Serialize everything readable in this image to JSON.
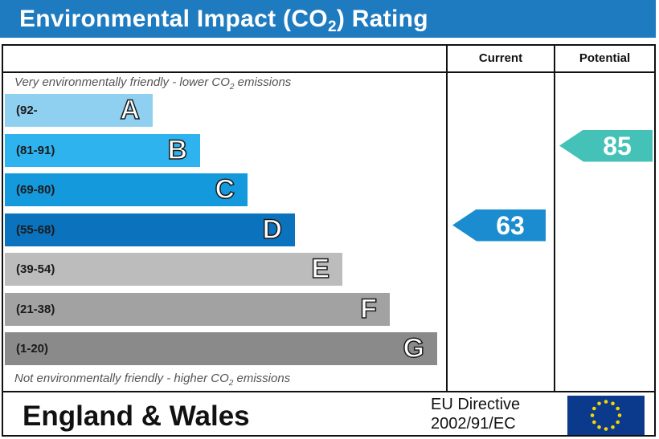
{
  "title": {
    "main": "Environmental Impact (CO",
    "sub": "2",
    "tail": ") Rating"
  },
  "columns": {
    "current": "Current",
    "potential": "Potential"
  },
  "notes": {
    "top": {
      "pre": "Very environmentally friendly - lower CO",
      "sub": "2",
      "post": " emissions"
    },
    "bottom": {
      "pre": "Not environmentally friendly - higher CO",
      "sub": "2",
      "post": " emissions"
    }
  },
  "chart_data": {
    "type": "bar",
    "categories": [
      "A",
      "B",
      "C",
      "D",
      "E",
      "F",
      "G"
    ],
    "ranges": [
      "(92-",
      "(81-91)",
      "(69-80)",
      "(55-68)",
      "(39-54)",
      "(21-38)",
      "(1-20)"
    ],
    "band_colors": [
      "#8fd0f0",
      "#2fb3ee",
      "#1399dc",
      "#0b73bd",
      "#bcbcbc",
      "#a2a2a2",
      "#8a8a8a"
    ],
    "current": {
      "value": 63,
      "band": "D",
      "color": "#1a8ccf"
    },
    "potential": {
      "value": 85,
      "band": "B",
      "color": "#44c2b8"
    }
  },
  "footer": {
    "region": "England & Wales",
    "directive_line1": "EU Directive",
    "directive_line2": "2002/91/EC"
  },
  "flag": {
    "background": "#0b3a8c",
    "stars": "#f5d700"
  }
}
